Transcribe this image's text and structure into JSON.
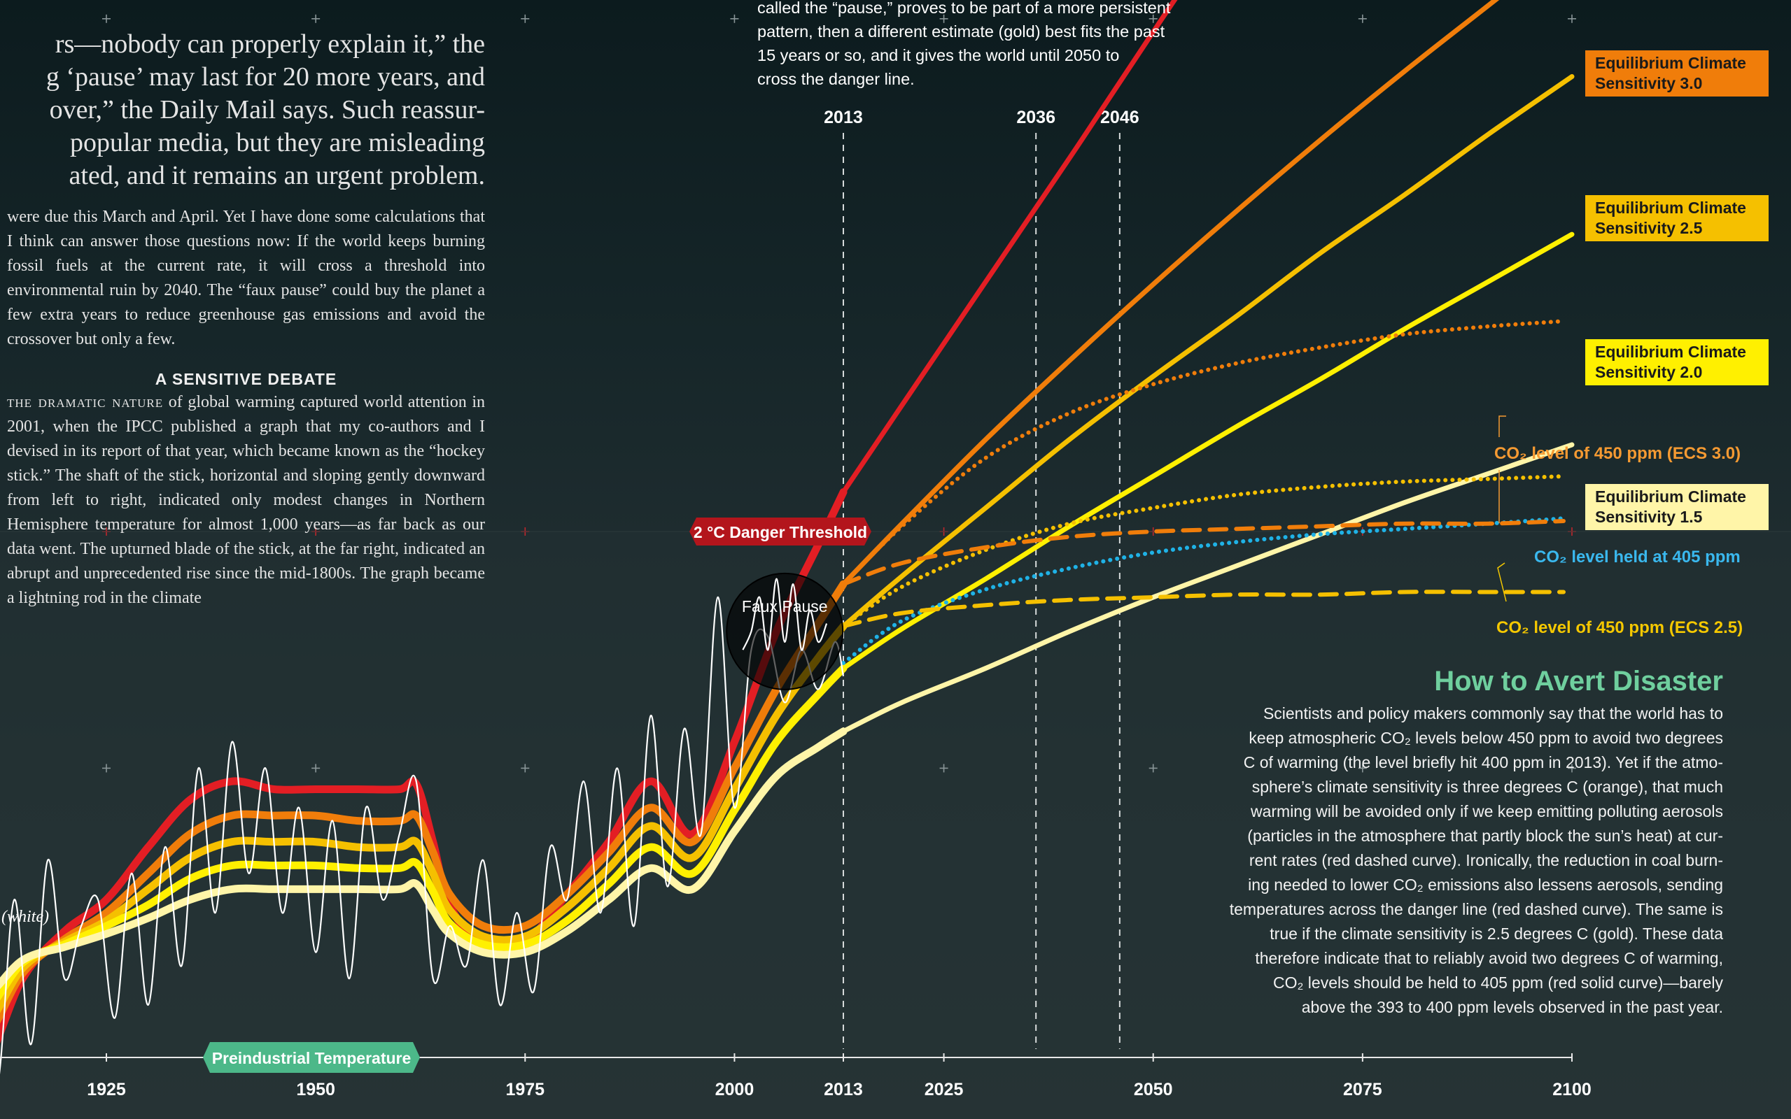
{
  "article": {
    "lead_lines": [
      "rs—nobody can properly explain it,” the",
      "g ‘pause’ may last for 20 more years, and",
      "over,” the Daily Mail says. Such reassur-",
      "popular media, but they are misleading",
      "ated, and it remains an urgent problem."
    ],
    "para1": "were due this March and April. Yet I have done some calculations that I think can answer those questions now: If the world keeps burning fossil fuels at the current rate, it will cross a threshold into environmental ruin by 2040. The “faux pause” could buy the planet a few extra years to reduce greenhouse gas emissions and avoid the crossover but only a few.",
    "heading": "A SENSITIVE DEBATE",
    "para2_lead": "the dramatic nature",
    "para2": " of global warming captured world attention in 2001, when the IPCC published a graph that my co-authors and I devised in its report of that year, which became known as the “hockey stick.” The shaft of the stick, horizontal and sloping gently downward from left to right, indicated only modest changes in Northern Hemisphere temperature for almost 1,000 years—as far back as our data went. The upturned blade of the stick, at the far right, indicated an abrupt and unprecedented rise since the mid-1800s. The graph became a lightning rod in the climate"
  },
  "intro_lines": [
    "called the “pause,” proves to be part of a more persistent",
    "pattern, then a different estimate (gold) best fits the past",
    "15 years or so, and it gives the world until 2050 to",
    "cross the danger line."
  ],
  "avert": {
    "title": "How to Avert Disaster",
    "lines": [
      "Scientists and policy makers commonly say that the world has to",
      "keep atmospheric CO₂ levels below 450 ppm to avoid two degrees",
      "C of warming (the level briefly hit 400 ppm in 2013). Yet if the atmo-",
      "sphere’s climate sensitivity is three degrees C (orange), that much",
      "warming will be avoided only if we keep emitting polluting aerosols",
      "(particles in the atmosphere that partly block the sun’s heat) at cur-",
      "rent rates (red dashed curve). Ironically, the reduction in coal burn-",
      "ing needed to lower CO₂ emissions also lessens aerosols, sending",
      "temperatures across the danger line (red dashed curve). The same is",
      "true if the climate sensitivity is 2.5 degrees C (gold). These data",
      "therefore indicate that to reliably avoid two degrees C of warming,",
      "CO₂ levels should be held to 405 ppm (red solid curve)—barely",
      "above the 393 to 400 ppm levels observed in the past year."
    ]
  },
  "chart_data": {
    "type": "line",
    "x_ticks": [
      1925,
      1950,
      1975,
      2000,
      2013,
      2025,
      2050,
      2075,
      2100
    ],
    "xlim": [
      1900,
      2110
    ],
    "y_units": "temperature anomaly relative to preindustrial (°C)",
    "ylim": [
      -0.3,
      4.9
    ],
    "marker_years": [
      2013,
      2036,
      2046
    ],
    "threshold": {
      "label": "2 °C Danger Threshold",
      "value": 2.0,
      "color": "#b3151c"
    },
    "baseline": {
      "label": "Preindustrial Temperature",
      "value": 0.0,
      "color": "#4cb889"
    },
    "faux_pause_label": "Faux Pause",
    "partial_label": "(white)",
    "colors": {
      "ecs3": "#f07d0a",
      "ecs25": "#f5c000",
      "ecs2": "#fff000",
      "ecs15": "#fff5a8",
      "red": "#e31e24",
      "blue": "#1fb2e6",
      "obs": "#ffffff"
    },
    "historical": {
      "x": [
        1900,
        1905,
        1910,
        1915,
        1920,
        1925,
        1930,
        1935,
        1940,
        1945,
        1950,
        1955,
        1960,
        1962,
        1964,
        1966,
        1970,
        1975,
        1980,
        1985,
        1990,
        1995,
        2000,
        2005,
        2010,
        2013
      ],
      "ecs3": [
        0.25,
        0.1,
        0.05,
        0.32,
        0.45,
        0.55,
        0.7,
        0.85,
        0.92,
        0.92,
        0.92,
        0.9,
        0.9,
        0.92,
        0.78,
        0.62,
        0.5,
        0.5,
        0.62,
        0.78,
        0.95,
        0.82,
        1.1,
        1.4,
        1.65,
        1.8
      ],
      "ecs25": [
        0.3,
        0.16,
        0.1,
        0.34,
        0.44,
        0.52,
        0.64,
        0.76,
        0.82,
        0.82,
        0.82,
        0.8,
        0.8,
        0.82,
        0.7,
        0.56,
        0.46,
        0.46,
        0.57,
        0.72,
        0.88,
        0.76,
        1.02,
        1.3,
        1.52,
        1.64
      ],
      "ecs2": [
        0.33,
        0.21,
        0.16,
        0.36,
        0.43,
        0.5,
        0.58,
        0.68,
        0.73,
        0.73,
        0.73,
        0.72,
        0.72,
        0.74,
        0.63,
        0.51,
        0.43,
        0.43,
        0.52,
        0.66,
        0.8,
        0.7,
        0.94,
        1.2,
        1.38,
        1.48
      ],
      "ecs15": [
        0.35,
        0.26,
        0.22,
        0.37,
        0.42,
        0.47,
        0.53,
        0.6,
        0.64,
        0.64,
        0.64,
        0.64,
        0.64,
        0.66,
        0.56,
        0.47,
        0.4,
        0.4,
        0.48,
        0.6,
        0.72,
        0.64,
        0.86,
        1.07,
        1.18,
        1.24
      ],
      "red": [
        0.15,
        0.02,
        -0.05,
        0.3,
        0.48,
        0.6,
        0.8,
        0.98,
        1.05,
        1.02,
        1.02,
        1.02,
        1.02,
        1.04,
        0.82,
        0.58,
        0.42,
        0.44,
        0.62,
        0.82,
        1.05,
        0.85,
        1.2,
        1.62,
        1.95,
        2.15
      ]
    },
    "projections": {
      "x": [
        2013,
        2020,
        2030,
        2040,
        2050,
        2060,
        2070,
        2080,
        2090,
        2100
      ],
      "ecs3": [
        1.8,
        2.03,
        2.35,
        2.65,
        2.94,
        3.22,
        3.49,
        3.75,
        4.0,
        4.25
      ],
      "ecs25": [
        1.64,
        1.83,
        2.09,
        2.35,
        2.59,
        2.82,
        3.06,
        3.28,
        3.51,
        3.73
      ],
      "ecs2": [
        1.48,
        1.63,
        1.82,
        2.02,
        2.21,
        2.4,
        2.58,
        2.77,
        2.95,
        3.13
      ],
      "ecs15": [
        1.24,
        1.35,
        1.48,
        1.62,
        1.75,
        1.87,
        1.99,
        2.11,
        2.22,
        2.33
      ],
      "red_x": [
        2013,
        2020,
        2030,
        2040,
        2045,
        2050,
        2060,
        2068
      ],
      "red": [
        2.15,
        2.48,
        2.95,
        3.42,
        3.66,
        3.9,
        4.38,
        4.8
      ]
    },
    "scenarios": {
      "x": [
        2013,
        2020,
        2030,
        2040,
        2050,
        2060,
        2070,
        2080,
        2090,
        2099
      ],
      "ecs3_450_dotted": [
        1.8,
        2.02,
        2.28,
        2.45,
        2.56,
        2.64,
        2.7,
        2.75,
        2.78,
        2.8
      ],
      "ecs3_450_dashed": [
        1.8,
        1.88,
        1.94,
        1.98,
        2.0,
        2.01,
        2.02,
        2.03,
        2.03,
        2.04
      ],
      "ecs25_450_dotted": [
        1.64,
        1.79,
        1.93,
        2.03,
        2.09,
        2.14,
        2.17,
        2.19,
        2.2,
        2.21
      ],
      "ecs25_450_dashed": [
        1.64,
        1.69,
        1.72,
        1.74,
        1.75,
        1.76,
        1.76,
        1.77,
        1.77,
        1.77
      ],
      "co2_405_blue": [
        1.5,
        1.66,
        1.78,
        1.86,
        1.92,
        1.96,
        1.99,
        2.01,
        2.03,
        2.05
      ]
    },
    "observed": {
      "x": [
        1900,
        1902,
        1904,
        1906,
        1908,
        1910,
        1912,
        1914,
        1916,
        1918,
        1920,
        1922,
        1924,
        1926,
        1928,
        1930,
        1932,
        1934,
        1936,
        1938,
        1940,
        1942,
        1944,
        1946,
        1948,
        1950,
        1952,
        1954,
        1956,
        1958,
        1960,
        1962,
        1964,
        1966,
        1968,
        1970,
        1972,
        1974,
        1976,
        1978,
        1980,
        1982,
        1984,
        1986,
        1988,
        1990,
        1992,
        1994,
        1996,
        1998,
        2000,
        2002,
        2004,
        2006,
        2008,
        2010,
        2012,
        2013
      ],
      "y": [
        0.2,
        -0.15,
        0.45,
        -0.05,
        -0.3,
        0.25,
        -0.1,
        0.6,
        0.05,
        0.75,
        0.3,
        0.5,
        0.6,
        0.15,
        0.7,
        0.2,
        0.8,
        0.35,
        1.1,
        0.55,
        1.2,
        0.7,
        1.1,
        0.55,
        0.95,
        0.4,
        0.9,
        0.3,
        0.95,
        0.6,
        0.85,
        1.05,
        0.3,
        0.5,
        0.35,
        0.75,
        0.2,
        0.55,
        0.25,
        0.8,
        0.6,
        1.05,
        0.55,
        1.1,
        0.5,
        1.3,
        0.65,
        1.25,
        0.85,
        1.75,
        0.95,
        1.55,
        1.6,
        1.35,
        1.55,
        1.4,
        1.58,
        1.45
      ]
    },
    "faux_pause_wiggle": {
      "x": [
        2001,
        2002,
        2003,
        2004,
        2005,
        2006,
        2007,
        2008,
        2009,
        2010,
        2011
      ],
      "y": [
        1.55,
        1.62,
        1.75,
        1.55,
        1.82,
        1.58,
        1.8,
        1.55,
        1.7,
        1.58,
        1.65
      ]
    },
    "box_labels": [
      {
        "text": "Equilibrium Climate Sensitivity 3.0",
        "color": "#f07d0a"
      },
      {
        "text": "Equilibrium Climate Sensitivity 2.5",
        "color": "#f5c000"
      },
      {
        "text": "Equilibrium Climate Sensitivity 2.0",
        "color": "#fff000"
      },
      {
        "text": "Equilibrium Climate Sensitivity 1.5",
        "color": "#fff5a8"
      }
    ],
    "annotations": [
      {
        "text": "CO₂ level of 450 ppm (ECS 3.0)",
        "color": "#f59a32"
      },
      {
        "text": "CO₂ level held at 405 ppm",
        "color": "#3ab8ee"
      },
      {
        "text": "CO₂ level of 450 ppm (ECS 2.5)",
        "color": "#f5c800"
      }
    ]
  }
}
